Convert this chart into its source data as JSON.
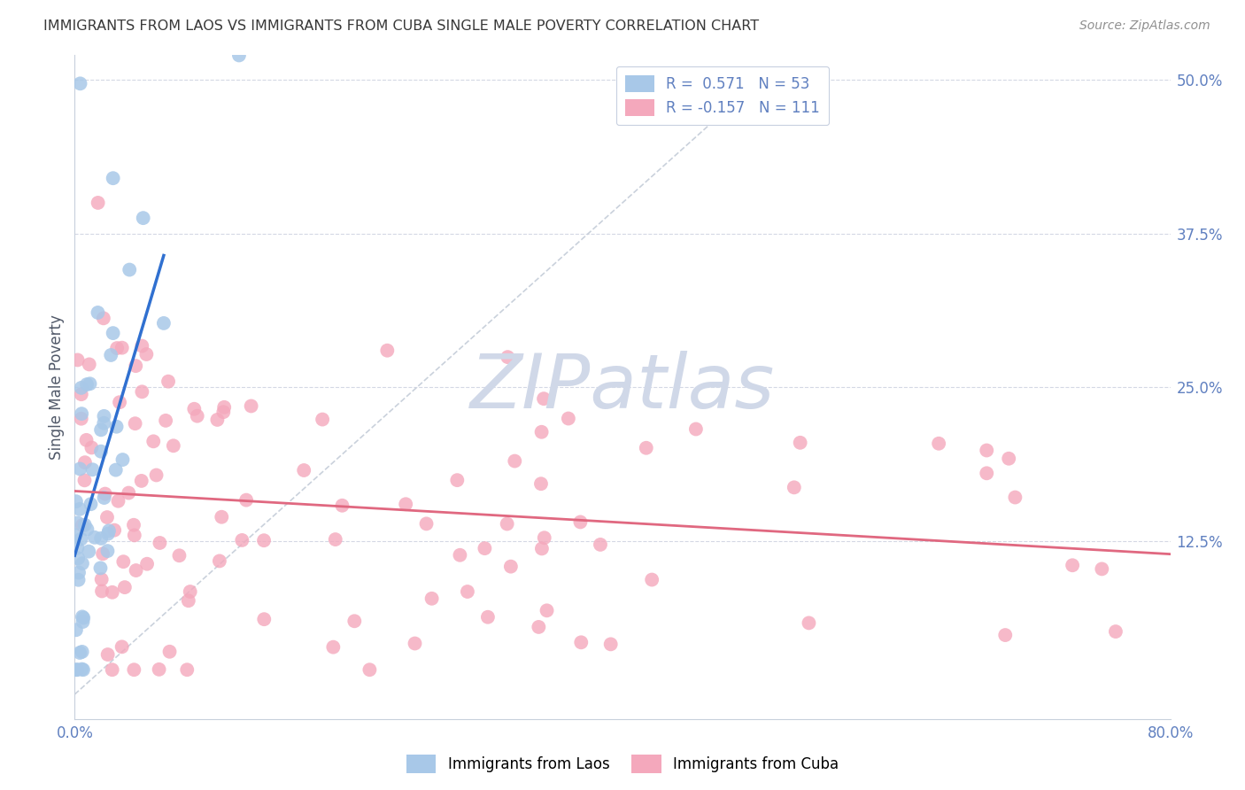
{
  "title": "IMMIGRANTS FROM LAOS VS IMMIGRANTS FROM CUBA SINGLE MALE POVERTY CORRELATION CHART",
  "source": "Source: ZipAtlas.com",
  "ylabel": "Single Male Poverty",
  "xlim": [
    0.0,
    0.8
  ],
  "ylim": [
    -0.02,
    0.52
  ],
  "laos_R": 0.571,
  "laos_N": 53,
  "cuba_R": -0.157,
  "cuba_N": 111,
  "laos_color": "#a8c8e8",
  "cuba_color": "#f4a8bc",
  "laos_line_color": "#3070d0",
  "cuba_line_color": "#e06880",
  "ref_line_color": "#c4ccd8",
  "background_color": "#ffffff",
  "grid_color": "#d4d8e4",
  "title_color": "#383838",
  "axis_color": "#6080c0",
  "watermark_color": "#d0d8e8",
  "watermark": "ZIPatlas"
}
